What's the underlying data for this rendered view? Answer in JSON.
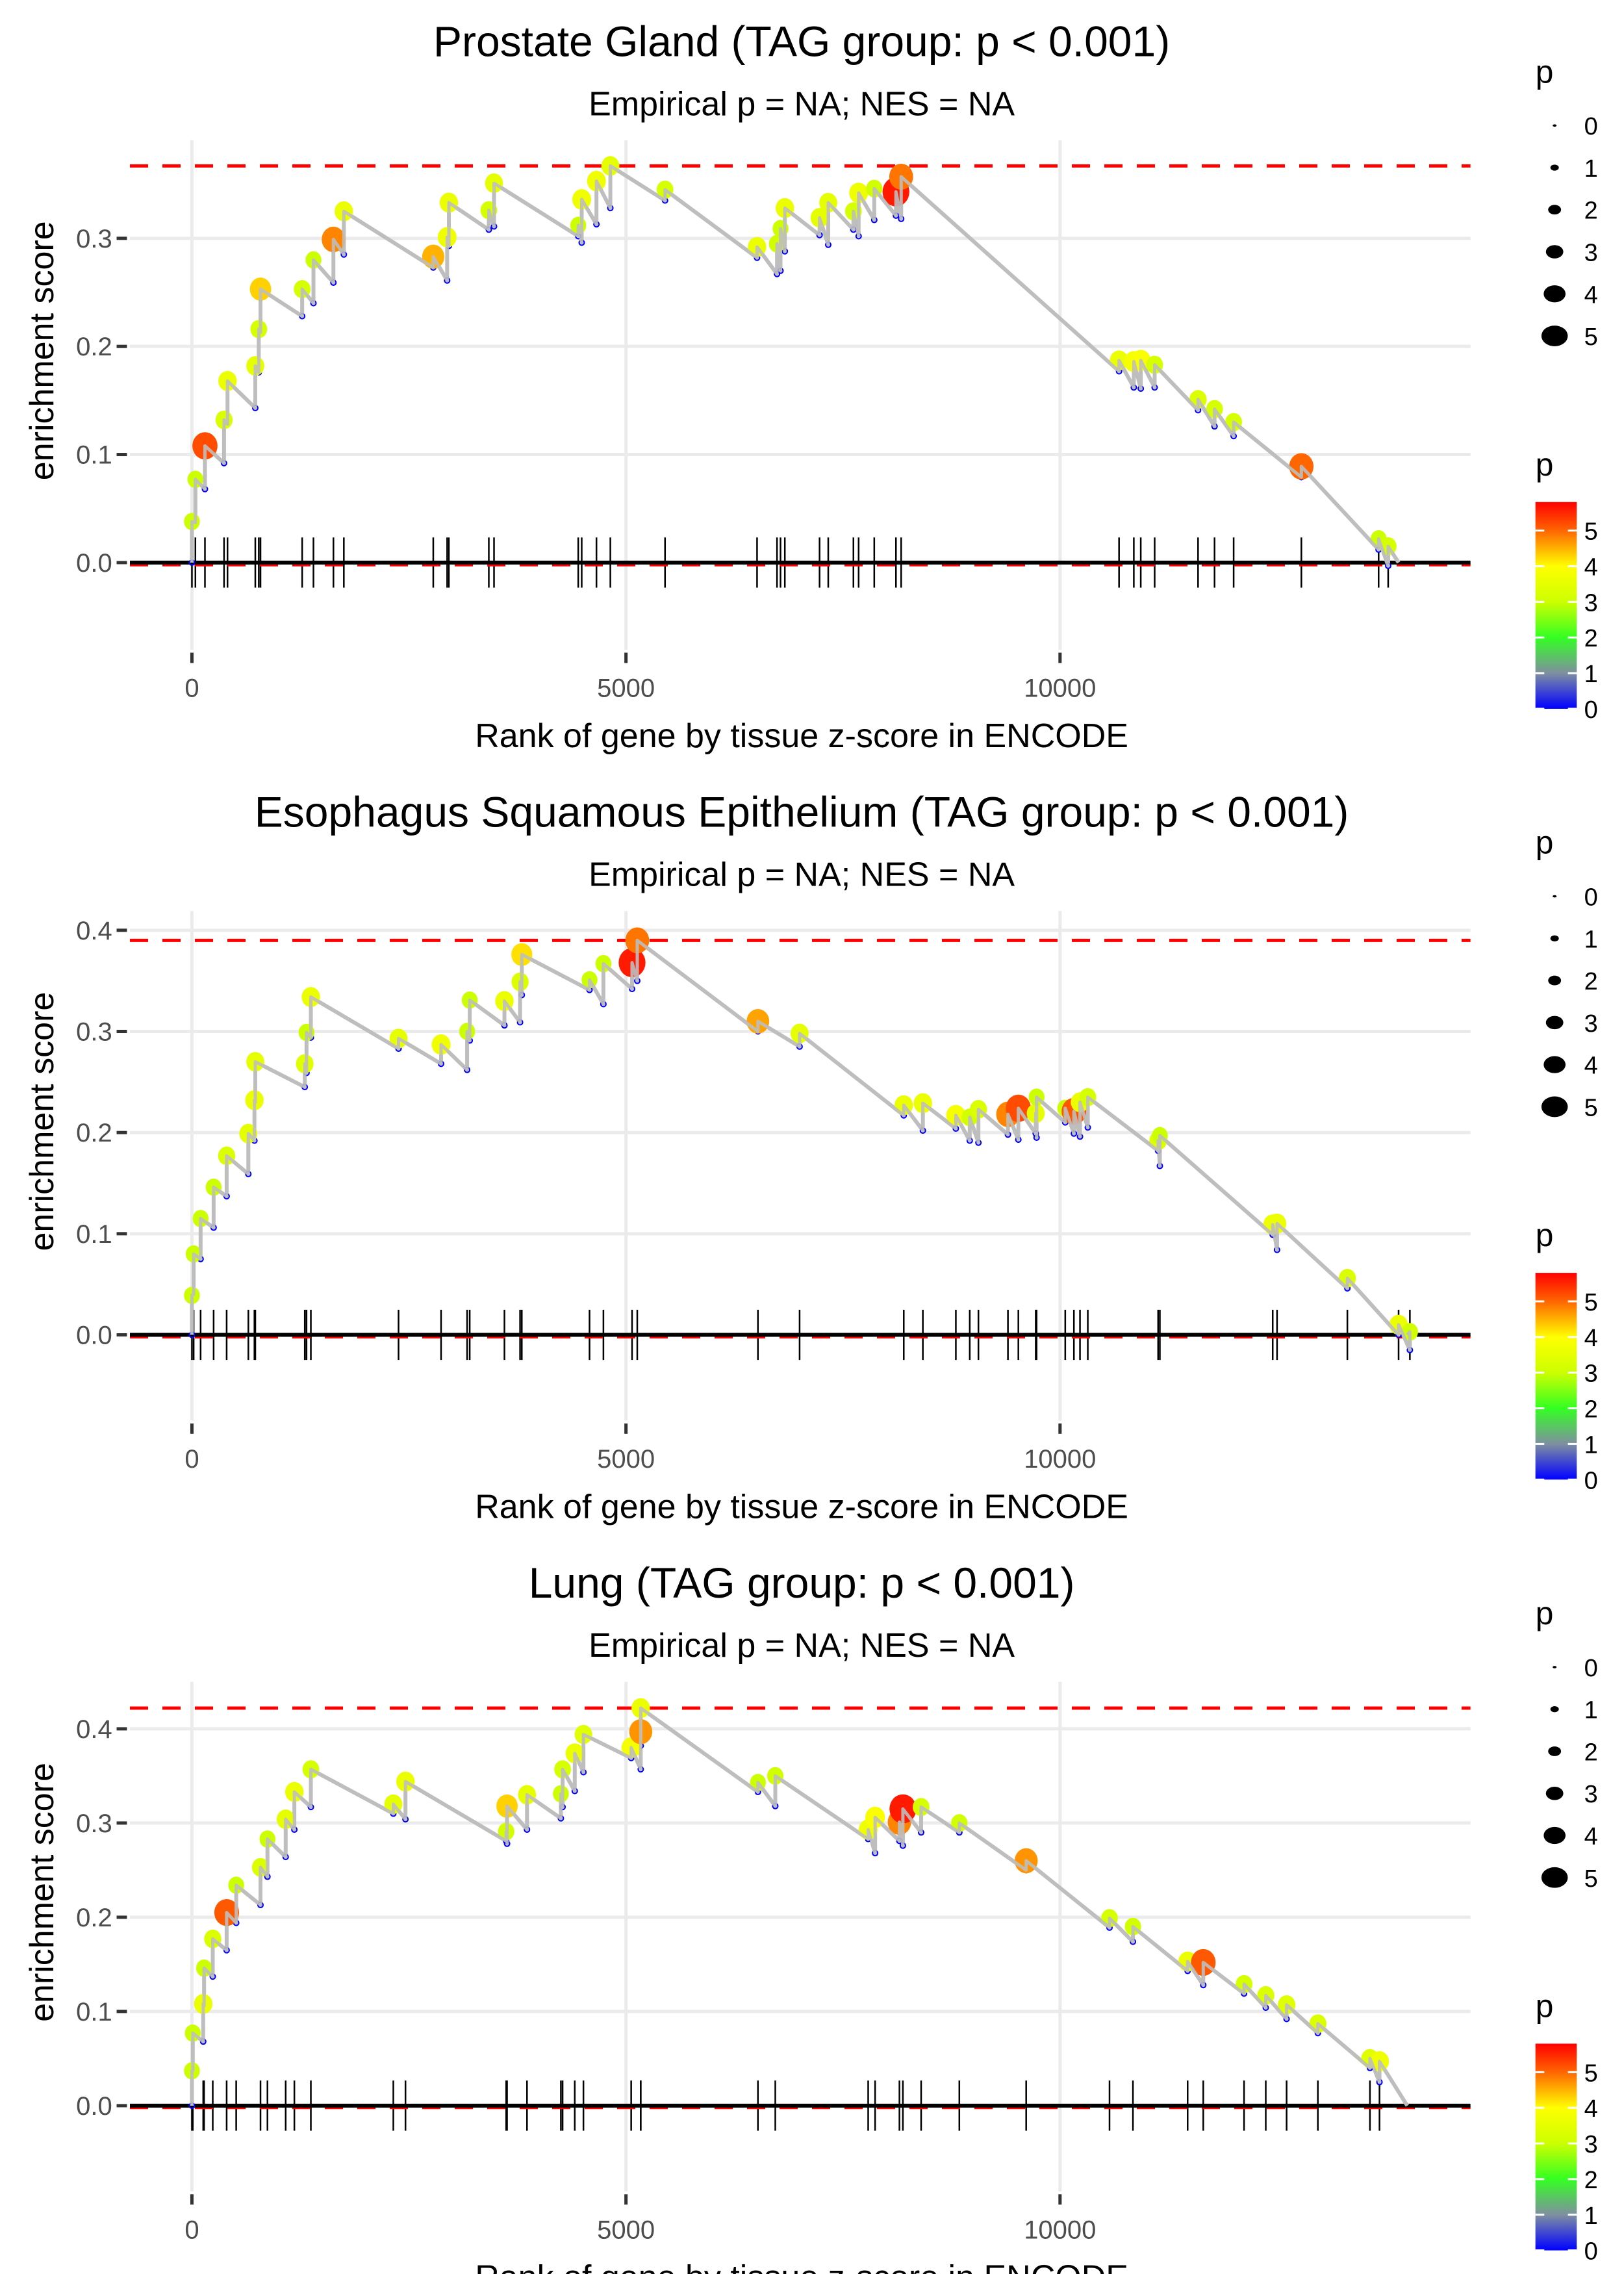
{
  "chart_data": [
    {
      "type": "scatter",
      "title": "Prostate Gland (TAG group: p < 0.001)",
      "subtitle": "Empirical p = NA; NES = NA",
      "xlabel": "Rank of gene by tissue z-score in ENCODE",
      "ylabel": "enrichment score",
      "xlim": [
        -700,
        14750
      ],
      "ylim": [
        -0.025,
        0.38
      ],
      "x_ticks": [
        0,
        5000,
        10000
      ],
      "x_tick_labels": [
        "0",
        "5000",
        "10000"
      ],
      "y_ticks": [
        0.0,
        0.1,
        0.2,
        0.3
      ],
      "y_tick_labels": [
        "0.0",
        "0.1",
        "0.2",
        "0.3"
      ],
      "max_es": 0.367,
      "min_es": -0.002,
      "end_rank": 13900,
      "grid": true,
      "points": [
        {
          "rank": 0,
          "es": 0.038,
          "p": 3.0
        },
        {
          "rank": 40,
          "es": 0.077,
          "p": 3.0
        },
        {
          "rank": 150,
          "es": 0.108,
          "p": 5.2
        },
        {
          "rank": 370,
          "es": 0.132,
          "p": 3.3
        },
        {
          "rank": 410,
          "es": 0.168,
          "p": 3.6
        },
        {
          "rank": 730,
          "es": 0.182,
          "p": 3.5
        },
        {
          "rank": 770,
          "es": 0.216,
          "p": 3.2
        },
        {
          "rank": 790,
          "es": 0.253,
          "p": 4.3
        },
        {
          "rank": 1270,
          "es": 0.253,
          "p": 3.2
        },
        {
          "rank": 1400,
          "es": 0.28,
          "p": 3.0
        },
        {
          "rank": 1630,
          "es": 0.299,
          "p": 4.8
        },
        {
          "rank": 1750,
          "es": 0.325,
          "p": 3.6
        },
        {
          "rank": 2780,
          "es": 0.283,
          "p": 4.5
        },
        {
          "rank": 2940,
          "es": 0.301,
          "p": 3.7
        },
        {
          "rank": 2960,
          "es": 0.333,
          "p": 3.6
        },
        {
          "rank": 3420,
          "es": 0.326,
          "p": 3.2
        },
        {
          "rank": 3480,
          "es": 0.351,
          "p": 3.5
        },
        {
          "rank": 4450,
          "es": 0.312,
          "p": 3.0
        },
        {
          "rank": 4490,
          "es": 0.336,
          "p": 3.7
        },
        {
          "rank": 4660,
          "es": 0.353,
          "p": 3.7
        },
        {
          "rank": 4820,
          "es": 0.367,
          "p": 3.5
        },
        {
          "rank": 5450,
          "es": 0.345,
          "p": 3.2
        },
        {
          "rank": 6510,
          "es": 0.292,
          "p": 3.6
        },
        {
          "rank": 6740,
          "es": 0.295,
          "p": 3.1
        },
        {
          "rank": 6780,
          "es": 0.309,
          "p": 3.0
        },
        {
          "rank": 6830,
          "es": 0.328,
          "p": 3.6
        },
        {
          "rank": 7230,
          "es": 0.319,
          "p": 3.5
        },
        {
          "rank": 7330,
          "es": 0.333,
          "p": 3.5
        },
        {
          "rank": 7620,
          "es": 0.325,
          "p": 3.2
        },
        {
          "rank": 7680,
          "es": 0.342,
          "p": 3.7
        },
        {
          "rank": 7860,
          "es": 0.346,
          "p": 3.1
        },
        {
          "rank": 8110,
          "es": 0.343,
          "p": 5.6
        },
        {
          "rank": 8170,
          "es": 0.357,
          "p": 4.9
        },
        {
          "rank": 10680,
          "es": 0.187,
          "p": 3.6
        },
        {
          "rank": 10850,
          "es": 0.186,
          "p": 3.8
        },
        {
          "rank": 10930,
          "es": 0.187,
          "p": 3.9
        },
        {
          "rank": 11090,
          "es": 0.183,
          "p": 3.2
        },
        {
          "rank": 11590,
          "es": 0.151,
          "p": 3.3
        },
        {
          "rank": 11780,
          "es": 0.142,
          "p": 3.2
        },
        {
          "rank": 12000,
          "es": 0.13,
          "p": 3.2
        },
        {
          "rank": 12780,
          "es": 0.089,
          "p": 5.0
        },
        {
          "rank": 13670,
          "es": 0.022,
          "p": 3.0
        },
        {
          "rank": 13780,
          "es": 0.015,
          "p": 3.2
        }
      ]
    },
    {
      "type": "scatter",
      "title": "Esophagus Squamous Epithelium (TAG group: p < 0.001)",
      "subtitle": "Empirical p = NA; NES = NA",
      "xlabel": "Rank of gene by tissue z-score in ENCODE",
      "ylabel": "enrichment score",
      "xlim": [
        -700,
        14750
      ],
      "ylim": [
        -0.01,
        0.41
      ],
      "x_ticks": [
        0,
        5000,
        10000
      ],
      "x_tick_labels": [
        "0",
        "5000",
        "10000"
      ],
      "y_ticks": [
        0.0,
        0.1,
        0.2,
        0.3,
        0.4
      ],
      "y_tick_labels": [
        "0.0",
        "0.1",
        "0.2",
        "0.3",
        "0.4"
      ],
      "max_es": 0.39,
      "min_es": -0.002,
      "end_rank": 14000,
      "grid": true,
      "points": [
        {
          "rank": 0,
          "es": 0.039,
          "p": 3.0
        },
        {
          "rank": 20,
          "es": 0.08,
          "p": 3.0
        },
        {
          "rank": 100,
          "es": 0.115,
          "p": 3.0
        },
        {
          "rank": 250,
          "es": 0.146,
          "p": 3.0
        },
        {
          "rank": 400,
          "es": 0.177,
          "p": 3.3
        },
        {
          "rank": 650,
          "es": 0.199,
          "p": 3.5
        },
        {
          "rank": 720,
          "es": 0.232,
          "p": 3.6
        },
        {
          "rank": 730,
          "es": 0.27,
          "p": 3.5
        },
        {
          "rank": 1300,
          "es": 0.268,
          "p": 3.4
        },
        {
          "rank": 1320,
          "es": 0.299,
          "p": 3.0
        },
        {
          "rank": 1370,
          "es": 0.334,
          "p": 3.6
        },
        {
          "rank": 2380,
          "es": 0.293,
          "p": 3.5
        },
        {
          "rank": 2870,
          "es": 0.287,
          "p": 3.7
        },
        {
          "rank": 3170,
          "es": 0.3,
          "p": 3.0
        },
        {
          "rank": 3200,
          "es": 0.331,
          "p": 3.0
        },
        {
          "rank": 3600,
          "es": 0.33,
          "p": 3.6
        },
        {
          "rank": 3780,
          "es": 0.349,
          "p": 3.3
        },
        {
          "rank": 3800,
          "es": 0.376,
          "p": 4.2
        },
        {
          "rank": 4580,
          "es": 0.351,
          "p": 3.0
        },
        {
          "rank": 4740,
          "es": 0.367,
          "p": 3.0
        },
        {
          "rank": 5070,
          "es": 0.368,
          "p": 5.6
        },
        {
          "rank": 5130,
          "es": 0.39,
          "p": 4.9
        },
        {
          "rank": 6520,
          "es": 0.31,
          "p": 4.6
        },
        {
          "rank": 7000,
          "es": 0.298,
          "p": 3.5
        },
        {
          "rank": 8200,
          "es": 0.227,
          "p": 3.6
        },
        {
          "rank": 8420,
          "es": 0.229,
          "p": 3.6
        },
        {
          "rank": 8800,
          "es": 0.217,
          "p": 3.8
        },
        {
          "rank": 8960,
          "es": 0.215,
          "p": 3.1
        },
        {
          "rank": 9060,
          "es": 0.223,
          "p": 3.3
        },
        {
          "rank": 9400,
          "es": 0.218,
          "p": 4.8
        },
        {
          "rank": 9520,
          "es": 0.224,
          "p": 5.2
        },
        {
          "rank": 9720,
          "es": 0.219,
          "p": 3.5
        },
        {
          "rank": 9730,
          "es": 0.235,
          "p": 3.0
        },
        {
          "rank": 10060,
          "es": 0.224,
          "p": 3.0
        },
        {
          "rank": 10160,
          "es": 0.221,
          "p": 5.1
        },
        {
          "rank": 10230,
          "es": 0.23,
          "p": 3.6
        },
        {
          "rank": 10320,
          "es": 0.235,
          "p": 3.2
        },
        {
          "rank": 11130,
          "es": 0.192,
          "p": 3.4
        },
        {
          "rank": 11150,
          "es": 0.197,
          "p": 3.0
        },
        {
          "rank": 12450,
          "es": 0.109,
          "p": 3.7
        },
        {
          "rank": 12500,
          "es": 0.11,
          "p": 3.6
        },
        {
          "rank": 13310,
          "es": 0.056,
          "p": 3.3
        },
        {
          "rank": 13900,
          "es": 0.01,
          "p": 3.6
        },
        {
          "rank": 14030,
          "es": 0.003,
          "p": 3.1
        }
      ]
    },
    {
      "type": "scatter",
      "title": "Lung (TAG group: p < 0.001)",
      "subtitle": "Empirical p = NA; NES = NA",
      "xlabel": "Rank of gene by tissue z-score in ENCODE",
      "ylabel": "enrichment score",
      "xlim": [
        -700,
        14750
      ],
      "ylim": [
        -0.01,
        0.44
      ],
      "x_ticks": [
        0,
        5000,
        10000
      ],
      "x_tick_labels": [
        "0",
        "5000",
        "10000"
      ],
      "y_ticks": [
        0.0,
        0.1,
        0.2,
        0.3,
        0.4
      ],
      "y_tick_labels": [
        "0.0",
        "0.1",
        "0.2",
        "0.3",
        "0.4"
      ],
      "max_es": 0.422,
      "min_es": -0.002,
      "end_rank": 14000,
      "grid": true,
      "points": [
        {
          "rank": 0,
          "es": 0.037,
          "p": 3.0
        },
        {
          "rank": 10,
          "es": 0.077,
          "p": 3.0
        },
        {
          "rank": 130,
          "es": 0.108,
          "p": 3.6
        },
        {
          "rank": 140,
          "es": 0.146,
          "p": 3.0
        },
        {
          "rank": 240,
          "es": 0.177,
          "p": 3.3
        },
        {
          "rank": 400,
          "es": 0.205,
          "p": 5.1
        },
        {
          "rank": 510,
          "es": 0.234,
          "p": 3.0
        },
        {
          "rank": 790,
          "es": 0.253,
          "p": 3.3
        },
        {
          "rank": 870,
          "es": 0.283,
          "p": 3.0
        },
        {
          "rank": 1080,
          "es": 0.304,
          "p": 3.5
        },
        {
          "rank": 1180,
          "es": 0.333,
          "p": 3.6
        },
        {
          "rank": 1370,
          "es": 0.357,
          "p": 3.2
        },
        {
          "rank": 2320,
          "es": 0.32,
          "p": 3.5
        },
        {
          "rank": 2460,
          "es": 0.344,
          "p": 3.6
        },
        {
          "rank": 3620,
          "es": 0.291,
          "p": 3.1
        },
        {
          "rank": 3630,
          "es": 0.318,
          "p": 4.3
        },
        {
          "rank": 3860,
          "es": 0.33,
          "p": 3.5
        },
        {
          "rank": 4250,
          "es": 0.331,
          "p": 3.0
        },
        {
          "rank": 4270,
          "es": 0.357,
          "p": 3.2
        },
        {
          "rank": 4410,
          "es": 0.374,
          "p": 3.6
        },
        {
          "rank": 4510,
          "es": 0.394,
          "p": 3.4
        },
        {
          "rank": 5060,
          "es": 0.38,
          "p": 3.8
        },
        {
          "rank": 5170,
          "es": 0.397,
          "p": 4.7
        },
        {
          "rank": 5170,
          "es": 0.422,
          "p": 3.6
        },
        {
          "rank": 6520,
          "es": 0.343,
          "p": 3.0
        },
        {
          "rank": 6720,
          "es": 0.35,
          "p": 3.1
        },
        {
          "rank": 7790,
          "es": 0.293,
          "p": 3.7
        },
        {
          "rank": 7870,
          "es": 0.306,
          "p": 3.9
        },
        {
          "rank": 8150,
          "es": 0.301,
          "p": 4.8
        },
        {
          "rank": 8190,
          "es": 0.315,
          "p": 5.6
        },
        {
          "rank": 8400,
          "es": 0.317,
          "p": 3.2
        },
        {
          "rank": 8840,
          "es": 0.3,
          "p": 3.1
        },
        {
          "rank": 9610,
          "es": 0.26,
          "p": 4.7
        },
        {
          "rank": 10570,
          "es": 0.199,
          "p": 3.2
        },
        {
          "rank": 10840,
          "es": 0.19,
          "p": 3.1
        },
        {
          "rank": 11470,
          "es": 0.153,
          "p": 3.6
        },
        {
          "rank": 11650,
          "es": 0.152,
          "p": 5.1
        },
        {
          "rank": 12120,
          "es": 0.129,
          "p": 3.2
        },
        {
          "rank": 12370,
          "es": 0.117,
          "p": 3.3
        },
        {
          "rank": 12610,
          "es": 0.107,
          "p": 3.4
        },
        {
          "rank": 12970,
          "es": 0.087,
          "p": 3.3
        },
        {
          "rank": 13570,
          "es": 0.05,
          "p": 3.4
        },
        {
          "rank": 13680,
          "es": 0.047,
          "p": 3.7
        }
      ]
    }
  ],
  "size_legend": {
    "title": "p",
    "levels": [
      {
        "value": 0,
        "label": "0"
      },
      {
        "value": 1,
        "label": "1"
      },
      {
        "value": 2,
        "label": "2"
      },
      {
        "value": 3,
        "label": "3"
      },
      {
        "value": 4,
        "label": "4"
      },
      {
        "value": 5,
        "label": "5"
      }
    ]
  },
  "color_legend": {
    "title": "p",
    "range": [
      0,
      5.8
    ],
    "tick_values": [
      0,
      1,
      2,
      3,
      4,
      5
    ],
    "tick_labels": [
      "0",
      "1",
      "2",
      "3",
      "4",
      "5"
    ],
    "gradient_stops": [
      {
        "value": 0,
        "color": "#0000ff"
      },
      {
        "value": 1,
        "color": "#7f8fa0"
      },
      {
        "value": 2,
        "color": "#33ff22"
      },
      {
        "value": 3,
        "color": "#ccff00"
      },
      {
        "value": 4,
        "color": "#ffff00"
      },
      {
        "value": 5,
        "color": "#ff6600"
      },
      {
        "value": 5.8,
        "color": "#ff0000"
      }
    ]
  },
  "colors": {
    "es_line": "#bebebe",
    "max_line": "#ff0000",
    "baseline": "#000000",
    "grid": "#ebebeb",
    "rug": "#000000",
    "low_point": "#0000ff"
  }
}
